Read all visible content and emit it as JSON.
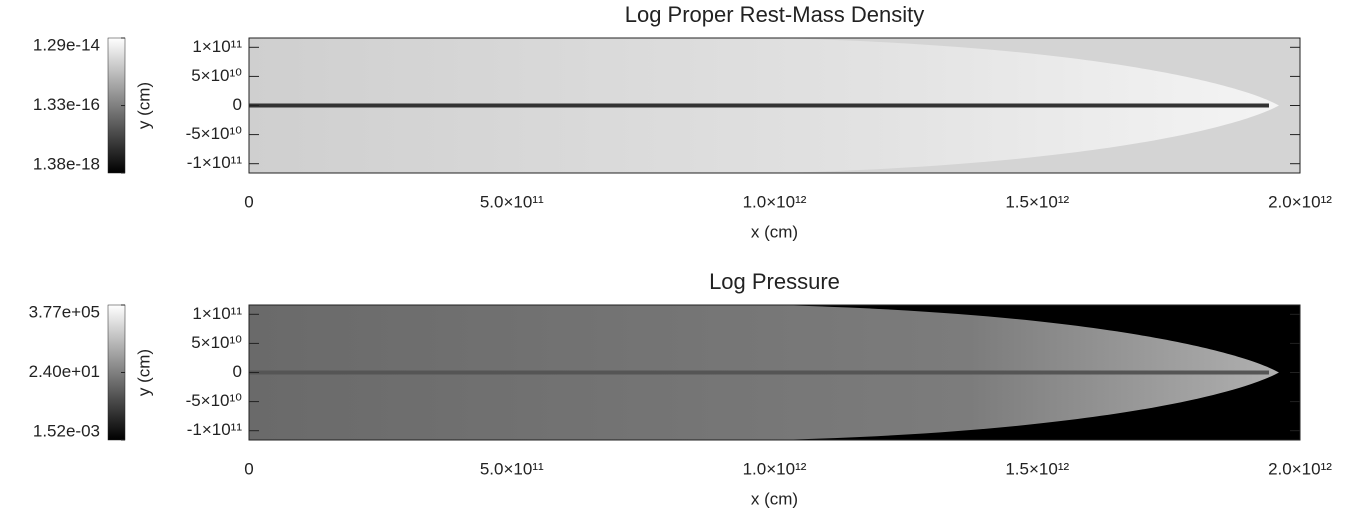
{
  "chart_data": [
    {
      "type": "heatmap",
      "title": "Log Proper Rest-Mass Density",
      "xlabel": "x (cm)",
      "ylabel": "y (cm)",
      "xlim": [
        0,
        2000000000000
      ],
      "ylim": [
        -116000000000,
        116000000000
      ],
      "xticks": [
        0,
        {
          "value": 500000000000,
          "label": "5.0×10¹¹"
        },
        {
          "value": 1000000000000,
          "label": "1.0×10¹²"
        },
        {
          "value": 1500000000000,
          "label": "1.5×10¹²"
        },
        {
          "value": 2000000000000,
          "label": "2.0×10¹²"
        }
      ],
      "yticks": [
        {
          "value": 100000000000,
          "label": "1×10¹¹"
        },
        {
          "value": 50000000000,
          "label": "5×10¹⁰"
        },
        0,
        {
          "value": -50000000000,
          "label": "-5×10¹⁰"
        },
        {
          "value": -100000000000,
          "label": "-1×10¹¹"
        }
      ],
      "colorbar": {
        "scale": "log",
        "lim": [
          1.38e-18,
          1.29e-14
        ],
        "ticks": [
          {
            "value": 1.29e-14,
            "label": "1.29e-14"
          },
          {
            "value": 1.33e-16,
            "label": "1.33e-16"
          },
          {
            "value": 1.38e-18,
            "label": "1.38e-18"
          }
        ]
      }
    },
    {
      "type": "heatmap",
      "title": "Log Pressure",
      "xlabel": "x (cm)",
      "ylabel": "y (cm)",
      "xlim": [
        0,
        2000000000000
      ],
      "ylim": [
        -116000000000,
        116000000000
      ],
      "xticks": [
        0,
        {
          "value": 500000000000,
          "label": "5.0×10¹¹"
        },
        {
          "value": 1000000000000,
          "label": "1.0×10¹²"
        },
        {
          "value": 1500000000000,
          "label": "1.5×10¹²"
        },
        {
          "value": 2000000000000,
          "label": "2.0×10¹²"
        }
      ],
      "yticks": [
        {
          "value": 100000000000,
          "label": "1×10¹¹"
        },
        {
          "value": 50000000000,
          "label": "5×10¹⁰"
        },
        0,
        {
          "value": -50000000000,
          "label": "-5×10¹⁰"
        },
        {
          "value": -100000000000,
          "label": "-1×10¹¹"
        }
      ],
      "colorbar": {
        "scale": "log",
        "lim": [
          0.00152,
          377000
        ],
        "ticks": [
          {
            "value": 377000,
            "label": "3.77e+05"
          },
          {
            "value": 24.0,
            "label": "2.40e+01"
          },
          {
            "value": 0.00152,
            "label": "1.52e-03"
          }
        ]
      }
    }
  ]
}
